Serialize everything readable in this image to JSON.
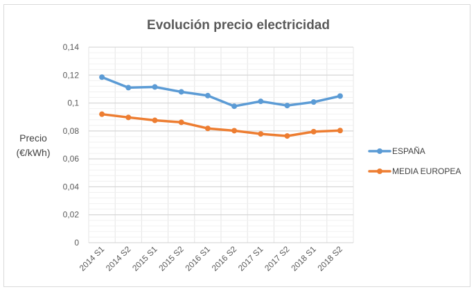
{
  "chart_data": {
    "type": "line",
    "title": "Evolución precio electricidad",
    "xlabel": "",
    "ylabel_lines": [
      "Precio",
      "(€/kWh)"
    ],
    "categories": [
      "2014 S1",
      "2014 S2",
      "2015 S1",
      "2015 S2",
      "2016 S1",
      "2016 S2",
      "2017 S1",
      "2017 S2",
      "2018 S1",
      "2018 S2"
    ],
    "ylim": [
      0,
      0.14
    ],
    "yticks": [
      "0",
      "0,02",
      "0,04",
      "0,06",
      "0,08",
      "0,1",
      "0,12",
      "0,14"
    ],
    "ytick_values": [
      0,
      0.02,
      0.04,
      0.06,
      0.08,
      0.1,
      0.12,
      0.14
    ],
    "grid": true,
    "legend_position": "right",
    "series": [
      {
        "name": "ESPAÑA",
        "color": "#5b9bd5",
        "values": [
          0.1185,
          0.111,
          0.1115,
          0.108,
          0.1053,
          0.0977,
          0.1012,
          0.0982,
          0.1007,
          0.105
        ]
      },
      {
        "name": "MEDIA EUROPEA",
        "color": "#ed7d31",
        "values": [
          0.092,
          0.0897,
          0.0876,
          0.0862,
          0.0818,
          0.0802,
          0.0779,
          0.0764,
          0.0795,
          0.0803
        ]
      }
    ]
  }
}
